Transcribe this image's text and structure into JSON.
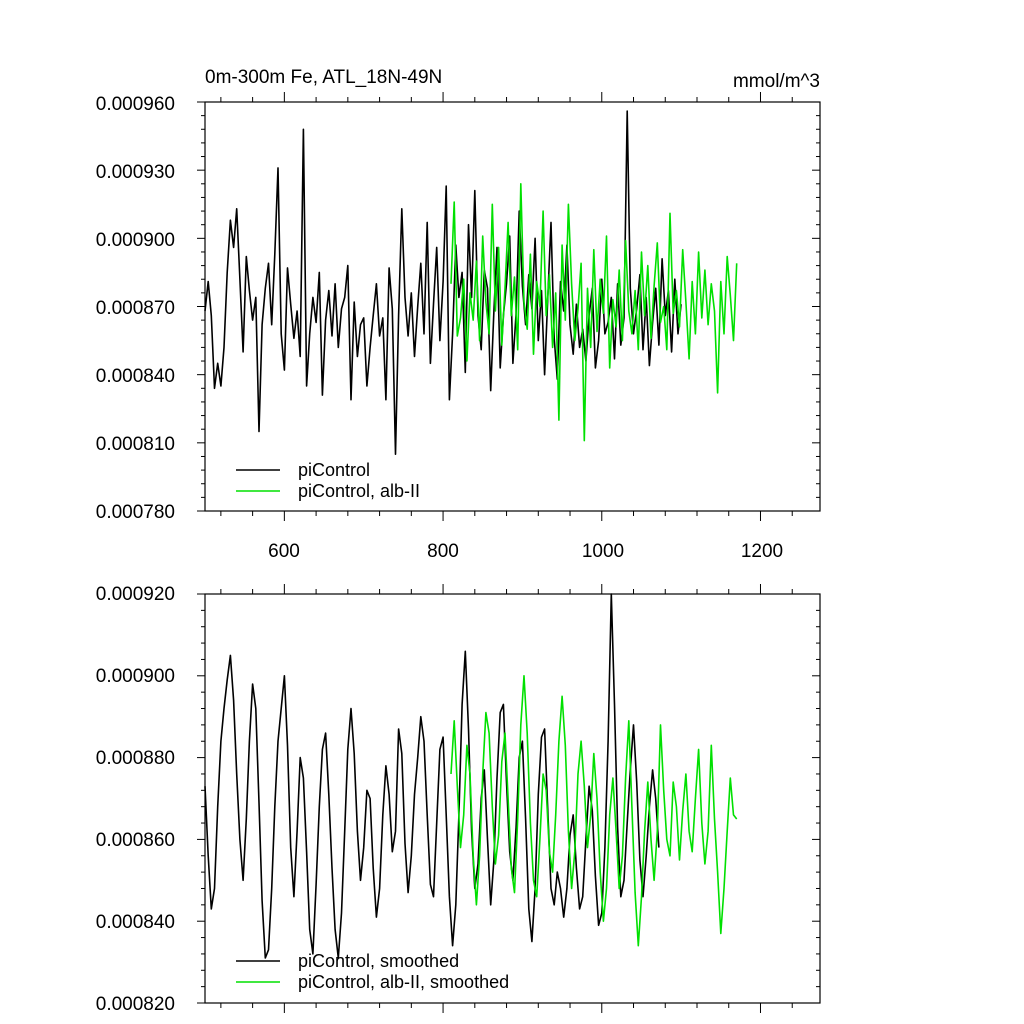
{
  "chart_data": [
    {
      "type": "line",
      "title": "0m-300m Fe, ATL_18N-49N",
      "units": "mmol/m^3",
      "xlabel": "",
      "ylabel": "",
      "xlim": [
        500,
        1275
      ],
      "ylim": [
        0.00078,
        0.00096
      ],
      "x_ticks": [
        600,
        800,
        1000,
        1200
      ],
      "x_tick_labels": [
        "600",
        "800",
        "1000",
        "1200"
      ],
      "y_ticks": [
        0.00078,
        0.00081,
        0.00084,
        0.00087,
        0.0009,
        0.00093,
        0.00096
      ],
      "y_tick_labels": [
        "0.000780",
        "0.000810",
        "0.000840",
        "0.000870",
        "0.000900",
        "0.000930",
        "0.000960"
      ],
      "legend_position": "bottom-left",
      "series": [
        {
          "name": "piControl",
          "color": "#000000",
          "start": 500,
          "step": 4,
          "values": [
            0.000868,
            0.000881,
            0.000866,
            0.000834,
            0.000845,
            0.000835,
            0.000852,
            0.000885,
            0.000908,
            0.000896,
            0.000913,
            0.000882,
            0.00085,
            0.000892,
            0.000877,
            0.000864,
            0.000874,
            0.000815,
            0.000862,
            0.000878,
            0.000889,
            0.000862,
            0.000893,
            0.000931,
            0.000858,
            0.000842,
            0.000887,
            0.000871,
            0.000856,
            0.000868,
            0.000848,
            0.000948,
            0.000835,
            0.000858,
            0.000874,
            0.000863,
            0.000885,
            0.000831,
            0.000864,
            0.000877,
            0.000857,
            0.00088,
            0.000852,
            0.000869,
            0.000874,
            0.000888,
            0.000829,
            0.000872,
            0.000848,
            0.000862,
            0.000865,
            0.000835,
            0.000852,
            0.000866,
            0.00088,
            0.000857,
            0.000865,
            0.000829,
            0.000887,
            0.000869,
            0.000805,
            0.000866,
            0.000913,
            0.000874,
            0.000857,
            0.000876,
            0.000848,
            0.00087,
            0.000889,
            0.000858,
            0.000907,
            0.000845,
            0.000871,
            0.000896,
            0.000855,
            0.000881,
            0.000923,
            0.000829,
            0.000858,
            0.000897,
            0.000874,
            0.000885,
            0.000841,
            0.000906,
            0.000874,
            0.000921,
            0.000866,
            0.000851,
            0.000886,
            0.000878,
            0.000833,
            0.000868,
            0.000896,
            0.000843,
            0.000866,
            0.00088,
            0.000901,
            0.000845,
            0.000867,
            0.000912,
            0.000879,
            0.000862,
            0.000884,
            0.000869,
            0.0009,
            0.000855,
            0.000877,
            0.00084,
            0.000874,
            0.000907,
            0.000856,
            0.000838,
            0.000881,
            0.000868,
            0.000897,
            0.000862,
            0.000849,
            0.000871,
            0.000852,
            0.00086,
            0.000846,
            0.000866,
            0.000878,
            0.000843,
            0.000855,
            0.000882,
            0.000858,
            0.000863,
            0.000874,
            0.000847,
            0.00088,
            0.000853,
            0.000865,
            0.000956,
            0.000878,
            0.000858,
            0.000869,
            0.000884,
            0.000851,
            0.000874,
            0.000844,
            0.000863,
            0.000878,
            0.000853,
            0.000891,
            0.000866,
            0.000877,
            0.00085,
            0.000882,
            0.000858,
            0.000871
          ]
        },
        {
          "name": "piControl, alb-II",
          "color": "#00e000",
          "start": 810,
          "step": 4,
          "values": [
            0.00088,
            0.000916,
            0.000857,
            0.000865,
            0.000882,
            0.000846,
            0.000876,
            0.000864,
            0.00089,
            0.000855,
            0.000901,
            0.000872,
            0.000858,
            0.000915,
            0.000868,
            0.000896,
            0.000853,
            0.000878,
            0.000907,
            0.000866,
            0.000883,
            0.000851,
            0.000924,
            0.000872,
            0.00086,
            0.000893,
            0.000849,
            0.000881,
            0.00087,
            0.000912,
            0.000866,
            0.000884,
            0.000852,
            0.000876,
            0.00082,
            0.000897,
            0.000864,
            0.000915,
            0.00088,
            0.000855,
            0.000869,
            0.000889,
            0.000811,
            0.000878,
            0.000852,
            0.000895,
            0.000859,
            0.000882,
            0.000867,
            0.000901,
            0.000843,
            0.000873,
            0.000861,
            0.000886,
            0.000855,
            0.000899,
            0.000868,
            0.000858,
            0.000877,
            0.000851,
            0.000894,
            0.000866,
            0.000888,
            0.000856,
            0.000879,
            0.000898,
            0.000863,
            0.00087,
            0.000851,
            0.000911,
            0.000867,
            0.000877,
            0.000861,
            0.000895,
            0.000872,
            0.000847,
            0.000881,
            0.000858,
            0.000894,
            0.000865,
            0.000886,
            0.000862,
            0.00088,
            0.000868,
            0.000832,
            0.000881,
            0.000858,
            0.000892,
            0.000875,
            0.000855,
            0.000889
          ]
        }
      ]
    },
    {
      "type": "line",
      "title": "",
      "xlabel": "",
      "ylabel": "",
      "xlim": [
        500,
        1275
      ],
      "ylim": [
        0.00082,
        0.00092
      ],
      "x_ticks": [
        600,
        800,
        1000,
        1200
      ],
      "x_tick_labels": [],
      "y_ticks": [
        0.00082,
        0.00084,
        0.00086,
        0.00088,
        0.0009,
        0.00092
      ],
      "y_tick_labels": [
        "0.000820",
        "0.000840",
        "0.000860",
        "0.000880",
        "0.000900",
        "0.000920"
      ],
      "legend_position": "bottom-left",
      "series": [
        {
          "name": "piControl, smoothed",
          "color": "#000000",
          "start": 500,
          "step": 4,
          "values": [
            0.000873,
            0.000856,
            0.000843,
            0.000848,
            0.000868,
            0.000884,
            0.000892,
            0.000899,
            0.000905,
            0.000894,
            0.000876,
            0.00086,
            0.00085,
            0.000865,
            0.000884,
            0.000898,
            0.000892,
            0.000869,
            0.000845,
            0.000831,
            0.000833,
            0.000848,
            0.000868,
            0.000884,
            0.000892,
            0.0009,
            0.000883,
            0.000858,
            0.000846,
            0.000862,
            0.00088,
            0.000875,
            0.000857,
            0.000838,
            0.000832,
            0.000849,
            0.000868,
            0.000882,
            0.000886,
            0.000871,
            0.000853,
            0.000838,
            0.000831,
            0.000842,
            0.000862,
            0.000882,
            0.000892,
            0.000881,
            0.000862,
            0.00085,
            0.000858,
            0.000872,
            0.00087,
            0.000853,
            0.000841,
            0.000848,
            0.000866,
            0.000878,
            0.000871,
            0.000857,
            0.000862,
            0.000887,
            0.000881,
            0.000859,
            0.000847,
            0.000856,
            0.000871,
            0.00088,
            0.00089,
            0.000884,
            0.000866,
            0.000849,
            0.000846,
            0.000864,
            0.000882,
            0.000885,
            0.000866,
            0.000846,
            0.000834,
            0.000844,
            0.000866,
            0.000893,
            0.000906,
            0.000887,
            0.000862,
            0.000848,
            0.000854,
            0.00087,
            0.000877,
            0.00086,
            0.000844,
            0.000855,
            0.000875,
            0.000891,
            0.000893,
            0.000874,
            0.000857,
            0.00085,
            0.000863,
            0.00088,
            0.000884,
            0.000865,
            0.000843,
            0.000835,
            0.000848,
            0.000871,
            0.000885,
            0.000887,
            0.000867,
            0.000848,
            0.000844,
            0.000852,
            0.000848,
            0.000841,
            0.000848,
            0.000861,
            0.000866,
            0.000853,
            0.000843,
            0.000846,
            0.00086,
            0.000873,
            0.000867,
            0.000851,
            0.000839,
            0.000842,
            0.000858,
            0.000884,
            0.00092,
            0.000893,
            0.000863,
            0.000846,
            0.00085,
            0.000864,
            0.000877,
            0.000888,
            0.000874,
            0.000855,
            0.000846,
            0.000856,
            0.000868,
            0.000877,
            0.00087,
            0.000858
          ]
        },
        {
          "name": "piControl, alb-II, smoothed",
          "color": "#00e000",
          "start": 810,
          "step": 4,
          "values": [
            0.000876,
            0.000889,
            0.000873,
            0.000858,
            0.000866,
            0.000883,
            0.000876,
            0.000856,
            0.000844,
            0.000856,
            0.000876,
            0.000891,
            0.000886,
            0.000868,
            0.000854,
            0.000861,
            0.000879,
            0.000886,
            0.00087,
            0.000853,
            0.000847,
            0.000865,
            0.000888,
            0.0009,
            0.000886,
            0.000864,
            0.00085,
            0.000846,
            0.00086,
            0.000876,
            0.000872,
            0.000857,
            0.000852,
            0.000866,
            0.000884,
            0.000895,
            0.000883,
            0.000862,
            0.000848,
            0.000857,
            0.000876,
            0.000884,
            0.000873,
            0.000858,
            0.000866,
            0.000881,
            0.00087,
            0.000852,
            0.00084,
            0.000848,
            0.000866,
            0.000875,
            0.000862,
            0.000848,
            0.000856,
            0.000875,
            0.000889,
            0.000868,
            0.000847,
            0.000834,
            0.000846,
            0.000862,
            0.000874,
            0.00086,
            0.00085,
            0.000862,
            0.000888,
            0.000872,
            0.00086,
            0.000856,
            0.000874,
            0.000868,
            0.000855,
            0.000867,
            0.000876,
            0.000862,
            0.000857,
            0.00087,
            0.000882,
            0.000864,
            0.000854,
            0.000862,
            0.000883,
            0.000865,
            0.000852,
            0.000837,
            0.000848,
            0.000862,
            0.000875,
            0.000866,
            0.000865
          ]
        }
      ]
    }
  ]
}
